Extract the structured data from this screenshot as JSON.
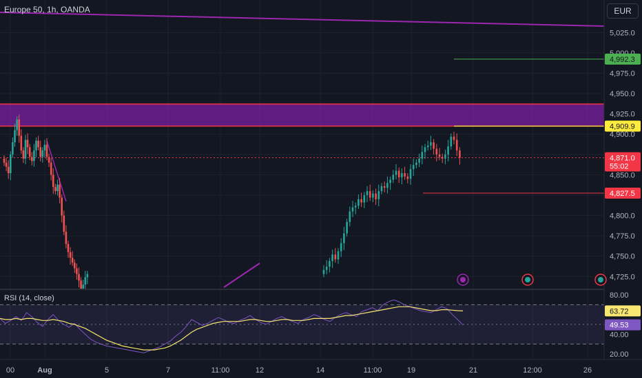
{
  "header": {
    "title": "Europe 50, 1h, OANDA",
    "currency": "EUR"
  },
  "colors": {
    "background": "#131722",
    "grid": "#1e222d",
    "up": "#26a69a",
    "down": "#ef5350",
    "zone_fill": "#7b1fa2",
    "zone_border": "#f23645",
    "trendline": "#9c27b0",
    "rsi_line": "#7e57c2",
    "rsi_ma": "#f7e66f",
    "green_tag": "#4caf50",
    "yellow_tag": "#ffeb3b",
    "red_tag": "#f23645"
  },
  "chart_data": [
    {
      "type": "candlestick",
      "name": "price",
      "y_ticks": [
        4725,
        4750,
        4775,
        4800,
        4825,
        4850,
        4875,
        4900,
        4925,
        4950,
        4975,
        5000,
        5025
      ],
      "y_tick_labels": [
        "4,725.0",
        "4,750.0",
        "4,775.0",
        "4,800.0",
        "",
        "4,850.0",
        "",
        "4,900.0",
        "4,925.0",
        "4,950.0",
        "4,975.0",
        "5,000.0",
        "5,025.0"
      ],
      "ylim": [
        4710,
        5065
      ],
      "x_tick_labels": [
        "00",
        "Aug",
        "5",
        "7",
        "11:00",
        "12",
        "14",
        "11:00",
        "19",
        "21",
        "12:00",
        "26"
      ],
      "closes": [
        4865,
        4860,
        4852,
        4875,
        4890,
        4905,
        4918,
        4898,
        4880,
        4870,
        4893,
        4884,
        4872,
        4867,
        4880,
        4892,
        4884,
        4872,
        4880,
        4887,
        4872,
        4865,
        4850,
        4835,
        4830,
        4838,
        4822,
        4800,
        4780,
        4765,
        4755,
        4748,
        4742,
        4735,
        4728,
        4720,
        4710,
        4715,
        4724,
        4728,
        4733,
        4737,
        4744,
        4752,
        4746,
        4756,
        4766,
        4778,
        4792,
        4805,
        4810,
        4812,
        4820,
        4816,
        4825,
        4830,
        4822,
        4827,
        4820,
        4830,
        4836,
        4834,
        4840,
        4844,
        4850,
        4855,
        4847,
        4852,
        4848,
        4845,
        4857,
        4862,
        4865,
        4870,
        4878,
        4884,
        4886,
        4890,
        4882,
        4875,
        4872,
        4870,
        4875,
        4885,
        4897,
        4893,
        4880,
        4871
      ],
      "reference_lines": [
        {
          "price": 4909.9,
          "label": "4,909.9",
          "tag": "yellow"
        },
        {
          "price": 4827.5,
          "label": "4,827.5",
          "tag": "red"
        },
        {
          "price": 4992.3,
          "label": "4,992.3",
          "tag": "green"
        }
      ],
      "zone": {
        "from": 4909.9,
        "to": 4937
      },
      "last_price": {
        "label": "4,871.0",
        "countdown": "55:02"
      }
    },
    {
      "type": "line",
      "name": "RSI (14, close)",
      "y_ticks": [
        20,
        40,
        60,
        80
      ],
      "y_tick_labels": [
        "20.00",
        "40.00",
        "",
        "80.00"
      ],
      "ylim": [
        15,
        85
      ],
      "bands": [
        30,
        70
      ],
      "midline": 50,
      "values": [
        56,
        51,
        54,
        58,
        54,
        62,
        58,
        52,
        48,
        55,
        60,
        54,
        50,
        47,
        51,
        45,
        40,
        35,
        32,
        30,
        28,
        27,
        26,
        25,
        24,
        23,
        22,
        21,
        23,
        25,
        27,
        30,
        33,
        38,
        42,
        48,
        55,
        52,
        49,
        51,
        54,
        57,
        55,
        52,
        51,
        54,
        56,
        59,
        55,
        52,
        50,
        53,
        56,
        58,
        55,
        53,
        51,
        55,
        57,
        60,
        58,
        55,
        53,
        57,
        60,
        62,
        60,
        58,
        63,
        65,
        67,
        64,
        70,
        73,
        75,
        73,
        70,
        68,
        66,
        64,
        63,
        62,
        65,
        68,
        66,
        60,
        55,
        49.53
      ],
      "ma": [
        56,
        55,
        55,
        56,
        55,
        56,
        56,
        55,
        54,
        54,
        55,
        54,
        53,
        51,
        50,
        48,
        46,
        43,
        40,
        37,
        34,
        32,
        30,
        28,
        27,
        26,
        25,
        24,
        24,
        24,
        25,
        26,
        28,
        31,
        34,
        38,
        42,
        45,
        47,
        49,
        51,
        52,
        53,
        53,
        53,
        53,
        54,
        55,
        55,
        54,
        53,
        53,
        54,
        55,
        55,
        54,
        54,
        54,
        55,
        56,
        56,
        56,
        56,
        57,
        58,
        59,
        59,
        60,
        61,
        62,
        63,
        64,
        65,
        66,
        67,
        68,
        68,
        68,
        67,
        66,
        65,
        64,
        64,
        65,
        65,
        64.5,
        64,
        63.72
      ],
      "last_values": {
        "rsi": "49.53",
        "ma": "63.72"
      }
    }
  ],
  "rsi_label": "RSI (14, close)"
}
